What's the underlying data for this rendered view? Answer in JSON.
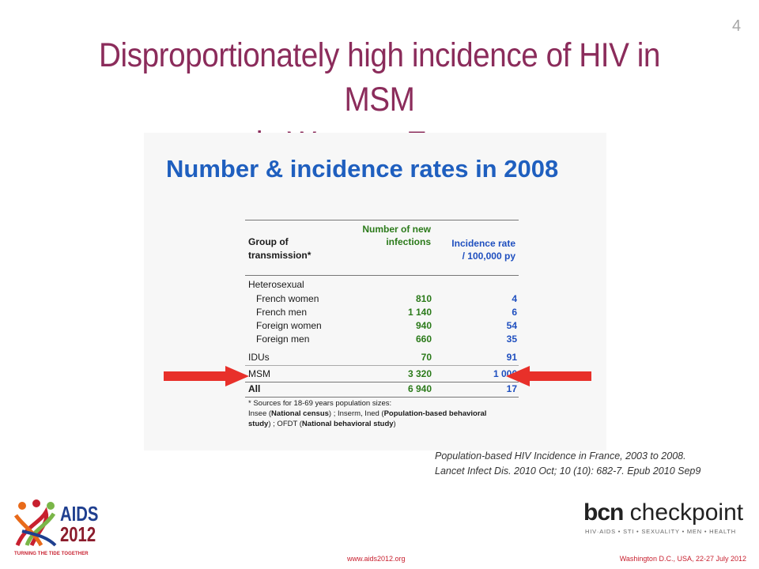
{
  "slide_number": "4",
  "title_line1": "Disproportionately high incidence of HIV in MSM",
  "title_line2": "in Western Europe",
  "table": {
    "heading": "Number & incidence rates in 2008",
    "col_group_l1": "Group of",
    "col_group_l2": "transmission*",
    "col_new_l1": "Number of new",
    "col_new_l2": "infections",
    "col_rate_l1": "Incidence rate",
    "col_rate_l2": "/ 100,000 py",
    "rows": [
      {
        "group": "Heterosexual",
        "new": "",
        "rate": ""
      },
      {
        "group": "French women",
        "new": "810",
        "rate": "4"
      },
      {
        "group": "French men",
        "new": "1 140",
        "rate": "6"
      },
      {
        "group": "Foreign women",
        "new": "940",
        "rate": "54"
      },
      {
        "group": "Foreign men",
        "new": "660",
        "rate": "35"
      },
      {
        "group": "IDUs",
        "new": "70",
        "rate": "91"
      },
      {
        "group": "MSM",
        "new": "3 320",
        "rate": "1 006"
      },
      {
        "group": "All",
        "new": "6 940",
        "rate": "17"
      }
    ],
    "footnote_l1": "* Sources for 18-69 years population sizes:",
    "footnote_l2a": "Insee (",
    "footnote_l2b": "National census",
    "footnote_l2c": ") ; Inserm, Ined (",
    "footnote_l2d": "Population-based behavioral",
    "footnote_l3a": "study",
    "footnote_l3b": ") ; OFDT (",
    "footnote_l3c": "National behavioral study",
    "footnote_l3d": ")"
  },
  "arrow_color": "#e8302a",
  "citation_l1": "Population-based HIV Incidence in France, 2003 to 2008.",
  "citation_l2": "Lancet Infect Dis. 2010 Oct; 10 (10): 682-7. Epub 2010 Sep9",
  "aids_logo": {
    "word": "AIDS",
    "year": "2012",
    "tagline": "TURNING THE TIDE TOGETHER"
  },
  "bcn_logo": {
    "bold": "bcn",
    "rest": " checkpoint",
    "tagline": "HIV·AIDS • STI • SEXUALITY • MEN • HEALTH"
  },
  "footer_url": "www.aids2012.org",
  "footer_event": "Washington D.C., USA, 22-27 July 2012"
}
